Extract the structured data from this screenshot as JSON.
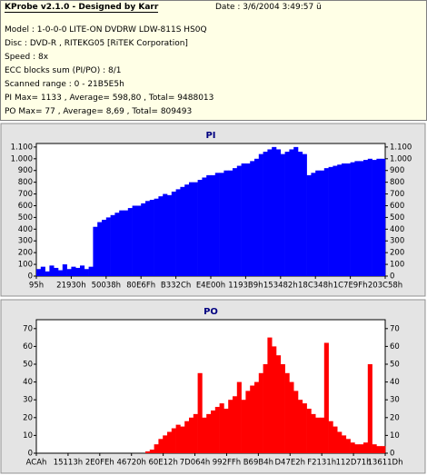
{
  "header": {
    "title": "KProbe v2.1.0 - Designed by Karr",
    "date": "Date : 3/6/2004 3:49:57 ü",
    "lines": [
      "Model : 1-0-0-0 LITE-ON DVDRW LDW-811S   HS0Q",
      "Disc : DVD-R , RITEKG05 [RiTEK Corporation]",
      "Speed : 8x",
      "ECC blocks sum (PI/PO) : 8/1",
      "Scanned range : 0 - 21B5E5h",
      "PI Max= 1133 , Average= 598,80 , Total= 9488013",
      "PO Max= 77 , Average= 8,69 , Total= 809493"
    ]
  },
  "chart_data": [
    {
      "type": "bar",
      "title": "PI",
      "color": "#0000ff",
      "xtick_labels": [
        "95h",
        "21930h",
        "50038h",
        "80E6Fh",
        "B332Ch",
        "E4E00h",
        "1193B9h",
        "153482h",
        "18C348h",
        "1C7E9Fh",
        "203C58h"
      ],
      "values": [
        60,
        80,
        40,
        90,
        70,
        50,
        100,
        60,
        80,
        70,
        90,
        60,
        80,
        420,
        460,
        480,
        500,
        520,
        540,
        560,
        560,
        580,
        600,
        600,
        620,
        640,
        650,
        660,
        680,
        700,
        690,
        720,
        740,
        760,
        780,
        800,
        800,
        820,
        840,
        860,
        860,
        880,
        880,
        900,
        900,
        920,
        940,
        960,
        960,
        980,
        1000,
        1040,
        1060,
        1080,
        1100,
        1080,
        1040,
        1060,
        1080,
        1100,
        1060,
        1040,
        860,
        880,
        900,
        900,
        920,
        930,
        940,
        950,
        960,
        960,
        970,
        980,
        980,
        990,
        1000,
        990,
        1000,
        1000
      ],
      "ylim": [
        0,
        1130
      ],
      "yticks": [
        0,
        100,
        200,
        300,
        400,
        500,
        600,
        700,
        800,
        900,
        {
          "value": 1000,
          "label": "1.000"
        },
        {
          "value": 1100,
          "label": "1.100"
        }
      ]
    },
    {
      "type": "bar",
      "title": "PO",
      "color": "#ff0000",
      "xtick_labels": [
        "ACAh",
        "15113h",
        "2E0FEh",
        "46720h",
        "60E12h",
        "7D064h",
        "992FFh",
        "B69B4h",
        "D47E2h",
        "F2131h",
        "112D71h",
        "13611Dh"
      ],
      "values": [
        0,
        0,
        0,
        0,
        0,
        0,
        0,
        0,
        0,
        0,
        0,
        0,
        0,
        0,
        0,
        0,
        0,
        0,
        0,
        0,
        0,
        0,
        0,
        0,
        0,
        1,
        2,
        5,
        8,
        10,
        12,
        14,
        16,
        15,
        18,
        20,
        22,
        45,
        20,
        22,
        24,
        26,
        28,
        25,
        30,
        32,
        40,
        30,
        35,
        38,
        40,
        45,
        50,
        65,
        60,
        55,
        50,
        45,
        40,
        35,
        30,
        28,
        25,
        22,
        20,
        20,
        62,
        18,
        15,
        12,
        10,
        8,
        6,
        5,
        5,
        6,
        50,
        5,
        4,
        4
      ],
      "ylim": [
        0,
        75
      ],
      "yticks": [
        0,
        10,
        20,
        30,
        40,
        50,
        60,
        70
      ]
    }
  ]
}
